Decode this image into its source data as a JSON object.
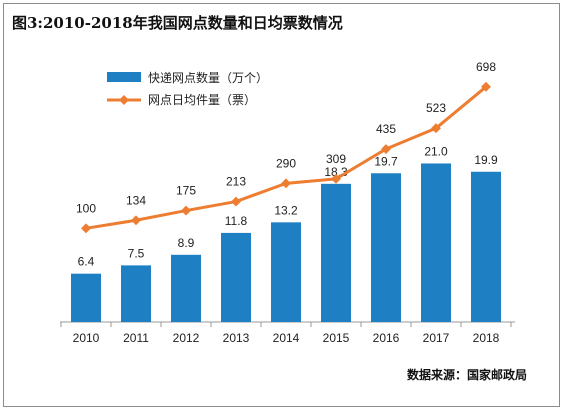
{
  "chart_data": {
    "type": "bar",
    "title": "图3:2010-2018年我国网点数量和日均票数情况",
    "source": "数据来源：国家邮政局",
    "categories": [
      "2010",
      "2011",
      "2012",
      "2013",
      "2014",
      "2015",
      "2016",
      "2017",
      "2018"
    ],
    "series": [
      {
        "name": "快递网点数量（万个）",
        "type": "bar",
        "color": "#1f7fc3",
        "values": [
          6.4,
          7.5,
          8.9,
          11.8,
          13.2,
          18.3,
          19.7,
          21.0,
          19.9
        ],
        "labels": [
          "6.4",
          "7.5",
          "8.9",
          "11.8",
          "13.2",
          "18.3",
          "19.7",
          "21.0",
          "19.9"
        ]
      },
      {
        "name": "网点日均件量（票）",
        "type": "line",
        "color": "#ed7d31",
        "values": [
          100,
          134,
          175,
          213,
          290,
          309,
          435,
          523,
          698
        ],
        "labels": [
          "100",
          "134",
          "175",
          "213",
          "290",
          "309",
          "435",
          "523",
          "698"
        ]
      }
    ],
    "grid": false,
    "legend": "top-left"
  }
}
